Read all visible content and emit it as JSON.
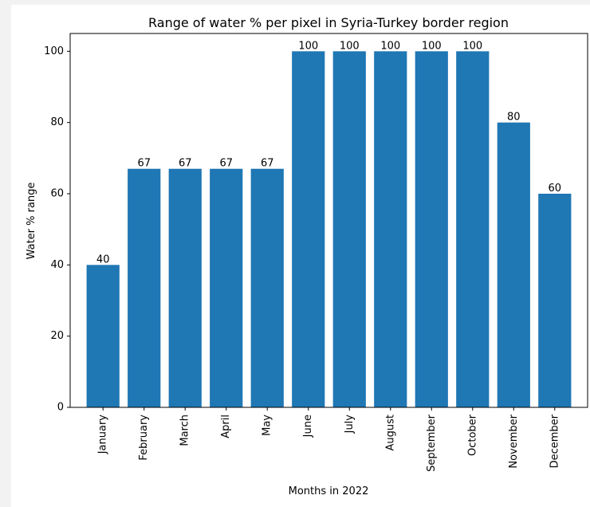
{
  "chart_data": {
    "type": "bar",
    "title": "Range of water % per pixel in Syria-Turkey border region",
    "xlabel": "Months in 2022",
    "ylabel": "Water % range",
    "categories": [
      "January",
      "February",
      "March",
      "April",
      "May",
      "June",
      "July",
      "August",
      "September",
      "October",
      "November",
      "December"
    ],
    "values": [
      40,
      67,
      67,
      67,
      67,
      100,
      100,
      100,
      100,
      100,
      80,
      60
    ],
    "data_labels": [
      "40",
      "67",
      "67",
      "67",
      "67",
      "100",
      "100",
      "100",
      "100",
      "100",
      "80",
      "60"
    ],
    "yticks": [
      0,
      20,
      40,
      60,
      80,
      100
    ],
    "ylim": [
      0,
      105
    ],
    "grid": false,
    "legend": "none",
    "bar_color": "#1f77b4"
  }
}
